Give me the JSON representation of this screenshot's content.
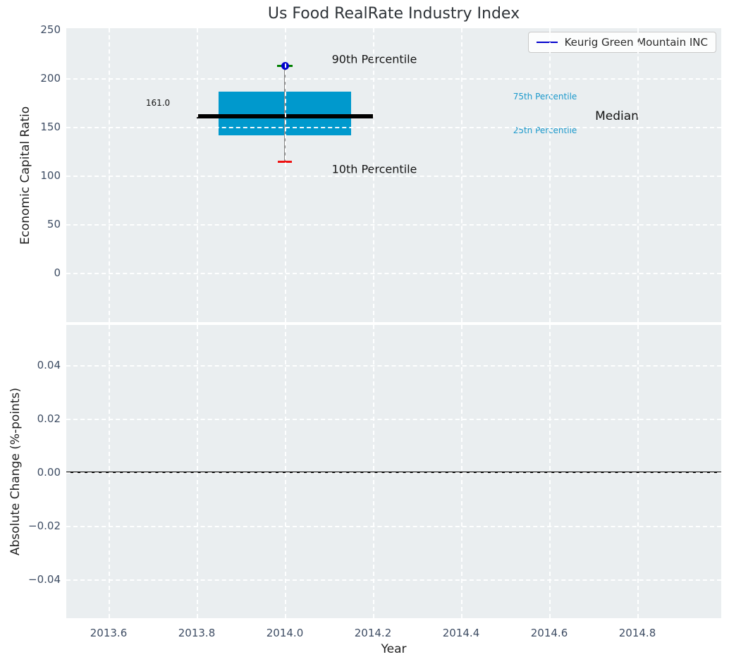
{
  "title": "Us Food RealRate Industry Index",
  "legend": {
    "label": "Keurig Green Mountain INC"
  },
  "top_axis": {
    "ylabel": "Economic Capital Ratio",
    "yticks": [
      {
        "label": "250",
        "v": 250
      },
      {
        "label": "200",
        "v": 200
      },
      {
        "label": "150",
        "v": 150
      },
      {
        "label": "100",
        "v": 100
      },
      {
        "label": "50",
        "v": 50
      },
      {
        "label": "0",
        "v": 0
      }
    ]
  },
  "bottom_axis": {
    "ylabel": "Absolute Change (%-points)",
    "xlabel": "Year",
    "yticks": [
      {
        "label": "0.04",
        "v": 0.04
      },
      {
        "label": "0.02",
        "v": 0.02
      },
      {
        "label": "0.00",
        "v": 0
      },
      {
        "label": "−0.02",
        "v": -0.02
      },
      {
        "label": "−0.04",
        "v": -0.04
      }
    ],
    "xticks": [
      {
        "label": "2013.6",
        "v": 2013.6
      },
      {
        "label": "2013.8",
        "v": 2013.8
      },
      {
        "label": "2014.0",
        "v": 2014.0
      },
      {
        "label": "2014.2",
        "v": 2014.2
      },
      {
        "label": "2014.4",
        "v": 2014.4
      },
      {
        "label": "2014.6",
        "v": 2014.6
      },
      {
        "label": "2014.8",
        "v": 2014.8
      }
    ]
  },
  "annotations": {
    "p90_label": "90th Percentile",
    "p10_label": "10th Percentile",
    "p75_label": "75th Percentile",
    "p25_label": "25th Percentile",
    "median_label": "Median",
    "median_value": "161.0"
  },
  "colors": {
    "axes_bg": "#eaeef0",
    "grid": "#ffffff",
    "tick_label": "#3d4c63",
    "title": "#2e3338",
    "axis_label": "#1f1f1f",
    "box_fill": "#0099cd",
    "median_line": "#000000",
    "whisker": "#8a8a8a",
    "p90_marker": "#0000cc",
    "p90_cap": "#008000",
    "p10_cap": "#ee1111",
    "legend_line": "#0000cc",
    "percentile_label": "#1b99cc",
    "zero_line": "#000000"
  },
  "chart_data": [
    {
      "type": "boxplot",
      "title": "Us Food RealRate Industry Index",
      "xlabel": "Year",
      "ylabel": "Economic Capital Ratio",
      "x": 2014.0,
      "box_halfwidth": 0.15,
      "median_halfwidth": 0.2,
      "percentiles": {
        "p10": 114,
        "p25": 141,
        "median": 161.0,
        "p75": 186,
        "p90": 213
      },
      "median_data_label": "161.0",
      "legend": [
        "Keurig Green Mountain INC"
      ],
      "legend_position": "upper right",
      "xlim": [
        2013.5,
        2015.0
      ],
      "ylim": [
        -51,
        250
      ],
      "yticks": [
        0,
        50,
        100,
        150,
        200,
        250
      ],
      "xticks": [
        2013.6,
        2013.8,
        2014.0,
        2014.2,
        2014.4,
        2014.6,
        2014.8
      ],
      "grid": true,
      "annotations": [
        "90th Percentile",
        "10th Percentile",
        "75th Percentile",
        "25th Percentile",
        "Median",
        "161.0"
      ]
    },
    {
      "type": "line",
      "ylabel": "Absolute Change (%-points)",
      "xlabel": "Year",
      "x": [],
      "series": [],
      "zero_line": 0.0,
      "xlim": [
        2013.5,
        2015.0
      ],
      "ylim": [
        -0.055,
        0.055
      ],
      "yticks": [
        0.04,
        0.02,
        0.0,
        -0.02,
        -0.04
      ],
      "xticks": [
        2013.6,
        2013.8,
        2014.0,
        2014.2,
        2014.4,
        2014.6,
        2014.8
      ],
      "grid": true
    }
  ]
}
